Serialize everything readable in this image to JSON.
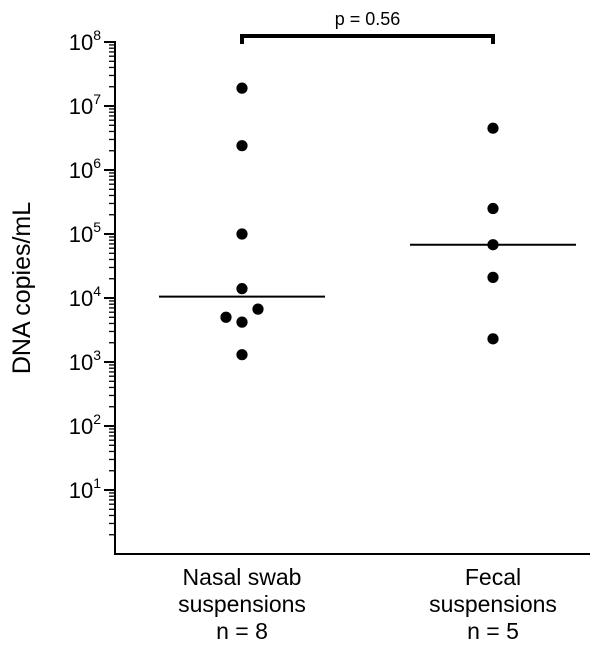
{
  "chart_data": {
    "type": "scatter",
    "title": "",
    "xlabel": "",
    "ylabel": "DNA copies/mL",
    "y_scale": "log",
    "ylim": [
      1,
      100000000
    ],
    "yticks": [
      {
        "base": "10",
        "exp": "1",
        "value": 10
      },
      {
        "base": "10",
        "exp": "2",
        "value": 100
      },
      {
        "base": "10",
        "exp": "3",
        "value": 1000
      },
      {
        "base": "10",
        "exp": "4",
        "value": 10000
      },
      {
        "base": "10",
        "exp": "5",
        "value": 100000
      },
      {
        "base": "10",
        "exp": "6",
        "value": 1000000
      },
      {
        "base": "10",
        "exp": "7",
        "value": 10000000
      },
      {
        "base": "10",
        "exp": "8",
        "value": 100000000
      }
    ],
    "grid": false,
    "legend": "none",
    "categories": [
      {
        "lines": [
          "Nasal swab",
          "suspensions",
          "n = 8"
        ]
      },
      {
        "lines": [
          "Fecal",
          "suspensions",
          "n = 5"
        ]
      }
    ],
    "series": [
      {
        "values": [
          19000000,
          2400000,
          100000,
          14000,
          6700,
          5000,
          4200,
          1300
        ],
        "median": 10500
      },
      {
        "values": [
          4500000,
          250000,
          68000,
          21000,
          2300
        ],
        "median": 68000
      }
    ],
    "annotation": {
      "text": "p = 0.56",
      "between": [
        0,
        1
      ]
    },
    "colors": {
      "marks": "#000000",
      "background": "#ffffff"
    }
  }
}
